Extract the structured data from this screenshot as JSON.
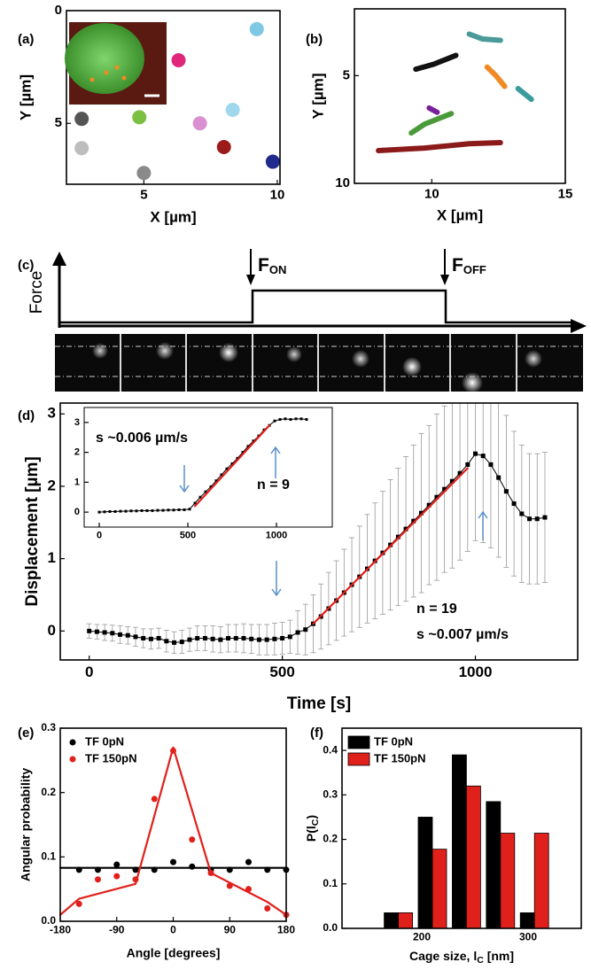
{
  "chart_data": [
    {
      "panel": "(a)",
      "type": "scatter",
      "xlabel": "X [µm]",
      "ylabel": "Y [µm]",
      "xlim": [
        2.1,
        10.1
      ],
      "ylim": [
        0,
        7.7
      ],
      "y_inverted": true,
      "xticks": [
        5,
        10
      ],
      "yticks": [
        0,
        5
      ],
      "series": [
        {
          "x": [
            9.23,
            6.3,
            2.67,
            4.83,
            7.1,
            8.33,
            2.67,
            8.0,
            9.83,
            5.0
          ],
          "values": [
            0.82,
            2.2,
            4.8,
            4.73,
            5.0,
            4.4,
            6.1,
            6.05,
            6.7,
            7.2
          ],
          "colors": [
            "#7ec8e3",
            "#e0267a",
            "#555555",
            "#7ac043",
            "#d98fd0",
            "#9fd8ec",
            "#bdbdbd",
            "#9b1b1b",
            "#1f2a8c",
            "#8a8a8a"
          ]
        }
      ]
    },
    {
      "panel": "(b)",
      "type": "line",
      "xlabel": "X [µm]",
      "ylabel": "Y [µm]",
      "xlim": [
        7.1,
        15
      ],
      "ylim": [
        1.9,
        10
      ],
      "y_inverted": true,
      "xticks": [
        10,
        15
      ],
      "yticks": [
        5,
        10
      ],
      "series": [
        {
          "color": "#4a9a9a",
          "x": [
            11.4,
            11.9,
            12.57
          ],
          "values": [
            3.07,
            3.3,
            3.36
          ]
        },
        {
          "color": "#111111",
          "x": [
            9.4,
            10.07,
            10.9
          ],
          "values": [
            4.7,
            4.47,
            4.06
          ]
        },
        {
          "color": "#f08a24",
          "x": [
            12.07,
            12.4,
            12.73
          ],
          "values": [
            4.6,
            5.0,
            5.5
          ]
        },
        {
          "color": "#3a9c9c",
          "x": [
            13.23,
            13.73
          ],
          "values": [
            5.6,
            6.1
          ]
        },
        {
          "color": "#7a1f9a",
          "x": [
            9.9,
            10.2
          ],
          "values": [
            6.5,
            6.7
          ]
        },
        {
          "color": "#4a9a3a",
          "x": [
            9.23,
            9.73,
            10.73
          ],
          "values": [
            7.66,
            7.25,
            6.76
          ]
        },
        {
          "color": "#8b1a1a",
          "x": [
            8.0,
            9.73,
            11.4,
            12.57
          ],
          "values": [
            8.48,
            8.36,
            8.16,
            8.11
          ]
        }
      ]
    },
    {
      "panel": "(d)",
      "type": "line",
      "xlabel": "Time [s]",
      "ylabel": "Displacement [µm]",
      "xlim": [
        -75,
        1265
      ],
      "ylim": [
        -0.4,
        3.15
      ],
      "xticks": [
        0,
        500,
        1000
      ],
      "yticks": [
        0,
        1,
        2,
        3
      ],
      "annotations": [
        "n = 19",
        "s ~0.007 µm/s"
      ],
      "series": [
        {
          "color": "#000000",
          "marker": "square",
          "x": [
            0,
            20,
            40,
            60,
            80,
            100,
            120,
            140,
            160,
            180,
            200,
            220,
            240,
            260,
            280,
            300,
            320,
            340,
            360,
            380,
            400,
            420,
            440,
            460,
            480,
            500,
            520,
            540,
            560,
            580,
            600,
            620,
            640,
            660,
            680,
            700,
            720,
            740,
            760,
            780,
            800,
            820,
            840,
            860,
            880,
            900,
            920,
            940,
            960,
            980,
            1000,
            1020,
            1040,
            1060,
            1080,
            1100,
            1120,
            1140,
            1160,
            1180
          ],
          "values": [
            0,
            -0.01,
            -0.02,
            -0.03,
            -0.05,
            -0.06,
            -0.08,
            -0.1,
            -0.11,
            -0.1,
            -0.14,
            -0.16,
            -0.15,
            -0.12,
            -0.1,
            -0.1,
            -0.11,
            -0.12,
            -0.1,
            -0.1,
            -0.1,
            -0.11,
            -0.12,
            -0.12,
            -0.11,
            -0.1,
            -0.08,
            -0.02,
            0.02,
            0.1,
            0.2,
            0.31,
            0.42,
            0.53,
            0.64,
            0.75,
            0.86,
            0.97,
            1.08,
            1.19,
            1.3,
            1.41,
            1.52,
            1.63,
            1.74,
            1.85,
            1.96,
            2.07,
            2.18,
            2.3,
            2.45,
            2.42,
            2.3,
            2.12,
            1.93,
            1.76,
            1.62,
            1.55,
            1.55,
            1.57
          ],
          "errors": [
            0.1,
            0.1,
            0.11,
            0.11,
            0.12,
            0.12,
            0.13,
            0.13,
            0.14,
            0.14,
            0.15,
            0.15,
            0.16,
            0.16,
            0.17,
            0.17,
            0.18,
            0.18,
            0.19,
            0.19,
            0.2,
            0.2,
            0.21,
            0.21,
            0.22,
            0.22,
            0.23,
            0.3,
            0.35,
            0.4,
            0.45,
            0.5,
            0.55,
            0.6,
            0.65,
            0.7,
            0.75,
            0.8,
            0.85,
            0.9,
            0.95,
            1.0,
            1.05,
            1.1,
            1.1,
            1.15,
            1.15,
            1.2,
            1.2,
            1.2,
            1.2,
            1.2,
            1.15,
            1.1,
            1.05,
            1.0,
            0.95,
            0.9,
            0.9,
            0.9
          ]
        },
        {
          "color": "#e0201b",
          "x": [
            580,
            980
          ],
          "values": [
            0.1,
            2.25
          ]
        }
      ]
    },
    {
      "type": "line",
      "xlim": [
        -85,
        1315
      ],
      "ylim": [
        -0.5,
        3.5
      ],
      "xticks": [
        0,
        500,
        1000
      ],
      "yticks": [
        0,
        1,
        2,
        3
      ],
      "annotations": [
        "s ~0.006 µm/s",
        "n = 9"
      ],
      "series": [
        {
          "color": "#000000",
          "marker": "square",
          "x": [
            0,
            30,
            60,
            90,
            120,
            150,
            180,
            210,
            240,
            270,
            300,
            330,
            360,
            390,
            420,
            450,
            480,
            510,
            540,
            570,
            600,
            630,
            660,
            690,
            720,
            750,
            780,
            810,
            840,
            870,
            900,
            930,
            960,
            990,
            1020,
            1050,
            1080,
            1110,
            1140,
            1170
          ],
          "values": [
            0,
            0.01,
            0.02,
            0.02,
            0.03,
            0.03,
            0.04,
            0.04,
            0.05,
            0.05,
            0.05,
            0.06,
            0.06,
            0.07,
            0.07,
            0.08,
            0.08,
            0.1,
            0.3,
            0.5,
            0.68,
            0.85,
            1.05,
            1.25,
            1.45,
            1.62,
            1.8,
            2.0,
            2.2,
            2.38,
            2.55,
            2.75,
            2.9,
            3.05,
            3.1,
            3.12,
            3.1,
            3.12,
            3.12,
            3.1
          ]
        },
        {
          "color": "#e0201b",
          "x": [
            540,
            960
          ],
          "values": [
            0.2,
            2.9
          ]
        }
      ]
    },
    {
      "panel": "(e)",
      "type": "scatter",
      "xlabel": "Angle [degrees]",
      "ylabel": "Angular probability",
      "xlim": [
        -180,
        180
      ],
      "ylim": [
        0,
        0.3
      ],
      "xticks": [
        -180,
        -90,
        0,
        90,
        180
      ],
      "yticks": [
        {
          "value": 0,
          "label": "0.0"
        },
        0.1,
        0.2,
        0.3
      ],
      "legend": "upper left",
      "series": [
        {
          "name": "TF 0pN",
          "color": "#000000",
          "x": [
            -150,
            -120,
            -90,
            -60,
            -30,
            0,
            30,
            60,
            90,
            120,
            150,
            180
          ],
          "values": [
            0.08,
            0.08,
            0.088,
            0.08,
            0.08,
            0.092,
            0.085,
            0.08,
            0.08,
            0.092,
            0.08,
            0.08
          ]
        },
        {
          "name": "TF 150pN",
          "color": "#e0201b",
          "x": [
            -150,
            -120,
            -90,
            -60,
            -30,
            0,
            30,
            60,
            90,
            120,
            150,
            180
          ],
          "values": [
            0.027,
            0.065,
            0.07,
            0.065,
            0.19,
            0.265,
            0.127,
            0.075,
            0.055,
            0.05,
            0.02,
            0.01
          ]
        },
        {
          "type": "line",
          "color": "#000000",
          "x": [
            -180,
            180
          ],
          "values": [
            0.083,
            0.083
          ]
        },
        {
          "type": "line",
          "color": "#e0201b",
          "x": [
            -180,
            -150,
            -60,
            0,
            60,
            150,
            180
          ],
          "values": [
            0.01,
            0.035,
            0.058,
            0.27,
            0.075,
            0.03,
            0.01
          ]
        }
      ]
    },
    {
      "panel": "(f)",
      "type": "bar",
      "xlabel": [
        "Cage size, l",
        "C",
        " [nm]"
      ],
      "ylabel": [
        "P(l",
        "C",
        ")"
      ],
      "xlim": [
        125,
        350
      ],
      "ylim": [
        0,
        0.45
      ],
      "xticks": [
        200,
        300
      ],
      "yticks": [
        {
          "value": 0,
          "label": "0.0"
        },
        0.1,
        0.2,
        0.3,
        0.4
      ],
      "legend": "upper left",
      "x": [
        178,
        210,
        242,
        274,
        306
      ],
      "series": [
        {
          "name": "TF 0pN",
          "color": "#000000",
          "values": [
            0.035,
            0.25,
            0.39,
            0.285,
            0.035
          ]
        },
        {
          "name": "TF 150pN",
          "color": "#e0201b",
          "values": [
            0.035,
            0.178,
            0.32,
            0.214,
            0.214
          ]
        }
      ]
    }
  ],
  "diagram_c": {
    "panel": "(c)",
    "axis_label": "Force",
    "f_on": {
      "main": "F",
      "sub": "ON"
    },
    "f_off": {
      "main": "F",
      "sub": "OFF"
    }
  }
}
